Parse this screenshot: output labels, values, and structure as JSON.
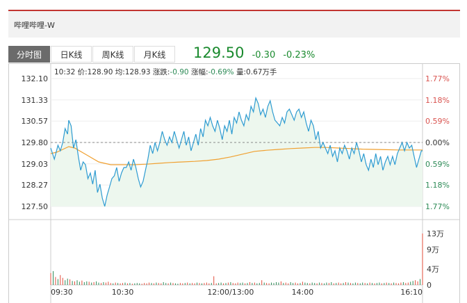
{
  "stock": {
    "name": "哔哩哔哩-W"
  },
  "tabs": [
    {
      "label": "分时图",
      "active": true
    },
    {
      "label": "日K线",
      "active": false
    },
    {
      "label": "周K线",
      "active": false
    },
    {
      "label": "月K线",
      "active": false
    }
  ],
  "quote": {
    "price": "129.50",
    "change": "-0.30",
    "change_pct": "-0.23%"
  },
  "info_line": {
    "time": "10:32",
    "price_label": "价:",
    "price": "128.90",
    "avg_label": "均:",
    "avg": "128.93",
    "chg_label": "涨跌:",
    "chg": "-0.90",
    "pct_label": "涨幅:",
    "pct": "-0.69%",
    "vol_label": "量:",
    "vol": "0.67万手"
  },
  "colors": {
    "up": "#e24c3a",
    "down": "#2e8b57",
    "price_line": "#2d9bd1",
    "avg_line": "#f0a030",
    "price_fill": "#edf7ee"
  },
  "chart_data": {
    "type": "line",
    "prev_close": 129.8,
    "y_ticks": [
      "132.10",
      "131.33",
      "130.57",
      "129.80",
      "129.03",
      "128.27",
      "127.50"
    ],
    "y_tick_values": [
      132.1,
      131.33,
      130.57,
      129.8,
      129.03,
      128.27,
      127.5
    ],
    "pct_ticks": [
      "1.77%",
      "1.18%",
      "0.59%",
      "0.00%",
      "0.59%",
      "1.18%",
      "1.77%"
    ],
    "x_ticks": [
      "09:30",
      "10:30",
      "12:00/13:00",
      "14:00",
      "16:10"
    ],
    "x_tick_minutes": [
      0,
      60,
      150,
      210,
      310
    ],
    "ylim": [
      127.5,
      132.1
    ],
    "x_minutes_total": 310,
    "price": {
      "x": [
        0,
        3,
        6,
        8,
        10,
        12,
        14,
        15,
        17,
        19,
        21,
        23,
        25,
        27,
        29,
        31,
        33,
        35,
        37,
        39,
        41,
        43,
        45,
        47,
        49,
        51,
        53,
        55,
        57,
        59,
        61,
        63,
        65,
        67,
        69,
        71,
        73,
        75,
        77,
        79,
        81,
        83,
        85,
        87,
        89,
        91,
        93,
        95,
        97,
        99,
        101,
        103,
        105,
        107,
        109,
        111,
        113,
        115,
        117,
        119,
        121,
        123,
        125,
        127,
        129,
        131,
        133,
        135,
        137,
        139,
        141,
        143,
        145,
        147,
        149,
        151,
        153,
        155,
        157,
        159,
        161,
        163,
        165,
        167,
        169,
        171,
        173,
        175,
        177,
        179,
        181,
        183,
        185,
        187,
        189,
        191,
        193,
        195,
        197,
        199,
        201,
        203,
        205,
        207,
        209,
        211,
        213,
        215,
        217,
        219,
        221,
        223,
        225,
        227,
        229,
        231,
        233,
        235,
        237,
        239,
        241,
        243,
        245,
        247,
        249,
        251,
        253,
        255,
        257,
        259,
        261,
        263,
        265,
        267,
        269,
        271,
        273,
        275,
        277,
        279,
        281,
        283,
        285,
        287,
        289,
        291,
        293,
        295,
        297,
        299,
        301,
        303,
        305,
        307,
        309,
        310
      ],
      "y": [
        129.6,
        129.2,
        129.7,
        129.5,
        129.8,
        130.3,
        130.1,
        130.6,
        130.4,
        129.6,
        129.9,
        129.3,
        128.8,
        129.1,
        129.0,
        128.5,
        128.7,
        128.3,
        128.8,
        128.0,
        128.3,
        127.8,
        127.5,
        127.9,
        128.2,
        128.5,
        128.6,
        128.9,
        128.4,
        128.7,
        128.9,
        128.9,
        129.1,
        128.8,
        129.2,
        128.9,
        128.5,
        128.2,
        128.4,
        128.8,
        129.2,
        129.7,
        129.4,
        129.8,
        129.5,
        129.8,
        130.2,
        129.9,
        129.7,
        130.0,
        129.8,
        130.2,
        129.9,
        129.6,
        129.9,
        130.2,
        129.7,
        130.0,
        129.5,
        129.8,
        130.1,
        129.7,
        130.3,
        130.0,
        130.6,
        130.4,
        130.7,
        130.4,
        130.2,
        130.6,
        130.3,
        129.9,
        130.4,
        130.2,
        130.6,
        130.1,
        130.7,
        130.5,
        130.9,
        130.6,
        130.4,
        130.8,
        130.6,
        131.1,
        130.9,
        131.4,
        131.2,
        130.8,
        131.0,
        130.7,
        131.1,
        131.3,
        130.9,
        130.6,
        130.5,
        130.4,
        130.7,
        130.5,
        130.9,
        131.0,
        130.8,
        130.6,
        130.9,
        131.0,
        130.7,
        130.9,
        130.5,
        130.2,
        130.6,
        130.4,
        129.9,
        130.2,
        129.6,
        129.8,
        129.6,
        129.4,
        129.7,
        129.3,
        129.5,
        129.1,
        129.6,
        129.4,
        129.7,
        129.5,
        129.2,
        129.6,
        129.4,
        129.8,
        129.5,
        129.1,
        129.4,
        129.0,
        128.8,
        129.2,
        128.9,
        129.4,
        129.0,
        129.3,
        128.8,
        129.1,
        129.3,
        129.0,
        129.3,
        129.0,
        129.4,
        129.6,
        129.8,
        129.5,
        129.8,
        129.6,
        129.7,
        129.3,
        128.9,
        129.2,
        129.5,
        129.5
      ]
    },
    "avg": {
      "x": [
        0,
        5,
        10,
        15,
        20,
        30,
        40,
        50,
        60,
        70,
        80,
        90,
        100,
        110,
        120,
        130,
        140,
        150,
        160,
        170,
        180,
        190,
        200,
        210,
        220,
        230,
        240,
        250,
        260,
        270,
        280,
        290,
        300,
        310
      ],
      "y": [
        129.4,
        129.45,
        129.55,
        129.65,
        129.6,
        129.35,
        129.1,
        129.0,
        129.0,
        129.0,
        129.02,
        129.05,
        129.08,
        129.1,
        129.12,
        129.15,
        129.2,
        129.28,
        129.38,
        129.48,
        129.52,
        129.55,
        129.58,
        129.6,
        129.62,
        129.62,
        129.6,
        129.58,
        129.56,
        129.55,
        129.54,
        129.53,
        129.53,
        129.53
      ]
    },
    "volume_ticks": [
      "13万",
      "9万",
      "4万",
      "0"
    ],
    "volume_tick_values": [
      130000,
      90000,
      40000,
      0
    ],
    "volume_max": 130000,
    "volume": {
      "x": [
        0,
        2,
        4,
        6,
        8,
        10,
        12,
        14,
        16,
        18,
        20,
        22,
        24,
        26,
        28,
        30,
        32,
        34,
        36,
        38,
        40,
        42,
        44,
        46,
        48,
        50,
        52,
        54,
        56,
        58,
        60,
        62,
        64,
        66,
        68,
        70,
        72,
        74,
        76,
        78,
        80,
        82,
        84,
        86,
        88,
        90,
        92,
        94,
        96,
        98,
        100,
        102,
        104,
        106,
        108,
        110,
        112,
        114,
        116,
        118,
        120,
        122,
        124,
        126,
        128,
        130,
        132,
        134,
        136,
        138,
        140,
        142,
        144,
        146,
        148,
        150,
        152,
        154,
        156,
        158,
        160,
        162,
        164,
        166,
        168,
        170,
        172,
        174,
        176,
        178,
        180,
        182,
        184,
        186,
        188,
        190,
        192,
        194,
        196,
        198,
        200,
        202,
        204,
        206,
        208,
        210,
        212,
        214,
        216,
        218,
        220,
        222,
        224,
        226,
        228,
        230,
        232,
        234,
        236,
        238,
        240,
        242,
        244,
        246,
        248,
        250,
        252,
        254,
        256,
        258,
        260,
        262,
        264,
        266,
        268,
        270,
        272,
        274,
        276,
        278,
        280,
        282,
        284,
        286,
        288,
        290,
        292,
        294,
        296,
        298,
        300,
        302,
        304,
        306,
        308,
        310
      ],
      "v": [
        30000,
        35000,
        20000,
        15000,
        25000,
        18000,
        12000,
        16000,
        14000,
        10000,
        9000,
        12000,
        8000,
        11000,
        7000,
        9000,
        8000,
        6000,
        7000,
        9000,
        6000,
        5000,
        7000,
        6000,
        8000,
        5000,
        4000,
        6000,
        5000,
        4000,
        5000,
        6000,
        4000,
        5000,
        3000,
        4000,
        5000,
        4000,
        3000,
        5000,
        4000,
        6000,
        5000,
        4000,
        6000,
        5000,
        4000,
        7000,
        5000,
        4000,
        6000,
        5000,
        4000,
        3000,
        5000,
        4000,
        5000,
        6000,
        4000,
        5000,
        4000,
        6000,
        5000,
        4000,
        5000,
        6000,
        4000,
        5000,
        22000,
        4000,
        5000,
        6000,
        4000,
        5000,
        6000,
        7000,
        5000,
        4000,
        6000,
        5000,
        6000,
        4000,
        5000,
        7000,
        5000,
        6000,
        4000,
        5000,
        12000,
        6000,
        5000,
        4000,
        6000,
        5000,
        7000,
        6000,
        9000,
        5000,
        6000,
        4000,
        7000,
        5000,
        6000,
        4000,
        5000,
        8000,
        6000,
        5000,
        4000,
        6000,
        5000,
        4000,
        6000,
        5000,
        4000,
        6000,
        5000,
        7000,
        4000,
        5000,
        6000,
        4000,
        5000,
        7000,
        6000,
        5000,
        4000,
        6000,
        5000,
        4000,
        6000,
        5000,
        4000,
        6000,
        5000,
        4000,
        5000,
        6000,
        4000,
        5000,
        6000,
        5000,
        4000,
        6000,
        5000,
        4000,
        6000,
        7000,
        5000,
        6000,
        8000,
        10000,
        12000,
        9000,
        15000,
        130000
      ],
      "up": [
        1,
        0,
        1,
        0,
        1,
        1,
        0,
        0,
        1,
        0,
        1,
        0,
        0,
        1,
        0,
        0,
        1,
        0,
        1,
        0,
        0,
        1,
        0,
        1,
        1,
        1,
        0,
        1,
        0,
        1,
        1,
        0,
        1,
        0,
        1,
        0,
        0,
        0,
        1,
        1,
        1,
        1,
        0,
        1,
        0,
        1,
        1,
        0,
        0,
        1,
        0,
        1,
        0,
        0,
        1,
        1,
        0,
        1,
        0,
        1,
        1,
        0,
        1,
        0,
        1,
        1,
        1,
        0,
        1,
        1,
        0,
        0,
        1,
        0,
        1,
        0,
        1,
        1,
        1,
        0,
        0,
        1,
        0,
        1,
        0,
        1,
        0,
        0,
        1,
        0,
        1,
        1,
        0,
        0,
        0,
        0,
        1,
        0,
        1,
        1,
        0,
        0,
        1,
        1,
        0,
        1,
        0,
        0,
        1,
        0,
        0,
        1,
        0,
        1,
        0,
        0,
        1,
        0,
        1,
        0,
        1,
        1,
        0,
        1,
        0,
        1,
        0,
        0,
        1,
        0,
        0,
        1,
        0,
        1,
        0,
        1,
        0,
        0,
        1,
        0,
        1,
        0,
        1,
        0,
        1,
        1,
        1,
        0,
        1,
        1,
        0,
        0,
        1,
        1,
        0,
        1
      ]
    }
  }
}
